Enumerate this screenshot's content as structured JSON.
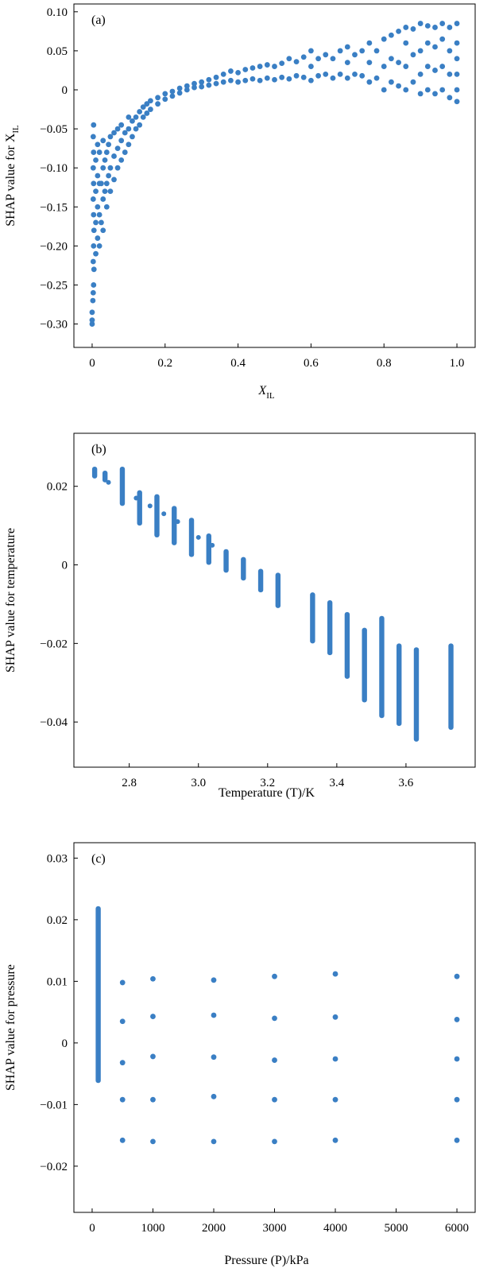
{
  "chart_data": [
    {
      "type": "scatter",
      "panel_label": "(a)",
      "xlabel": "X",
      "xlabel_sub": "IL",
      "ylabel": "SHAP value for X",
      "ylabel_sub": "IL",
      "xlim": [
        -0.05,
        1.05
      ],
      "ylim": [
        -0.33,
        0.11
      ],
      "xticks": [
        0,
        0.2,
        0.4,
        0.6,
        0.8,
        1.0
      ],
      "xtick_labels": [
        "0",
        "0.2",
        "0.4",
        "0.6",
        "0.8",
        "1.0"
      ],
      "yticks": [
        -0.3,
        -0.25,
        -0.2,
        -0.15,
        -0.1,
        -0.05,
        0,
        0.05,
        0.1
      ],
      "ytick_labels": [
        "−0.30",
        "−0.25",
        "−0.20",
        "−0.15",
        "−0.10",
        "−0.05",
        "0",
        "0.05",
        "0.10"
      ],
      "color": "#3a7fc4",
      "points": [
        [
          0,
          -0.3
        ],
        [
          0,
          -0.295
        ],
        [
          0,
          -0.285
        ],
        [
          0.002,
          -0.27
        ],
        [
          0.003,
          -0.26
        ],
        [
          0.004,
          -0.25
        ],
        [
          0.005,
          -0.23
        ],
        [
          0.003,
          -0.22
        ],
        [
          0.004,
          -0.2
        ],
        [
          0.005,
          -0.18
        ],
        [
          0.004,
          -0.16
        ],
        [
          0.003,
          -0.14
        ],
        [
          0.004,
          -0.12
        ],
        [
          0.003,
          -0.1
        ],
        [
          0.004,
          -0.08
        ],
        [
          0.003,
          -0.06
        ],
        [
          0.004,
          -0.045
        ],
        [
          0.01,
          -0.21
        ],
        [
          0.01,
          -0.17
        ],
        [
          0.01,
          -0.13
        ],
        [
          0.01,
          -0.09
        ],
        [
          0.015,
          -0.19
        ],
        [
          0.015,
          -0.15
        ],
        [
          0.015,
          -0.11
        ],
        [
          0.015,
          -0.07
        ],
        [
          0.02,
          -0.2
        ],
        [
          0.02,
          -0.16
        ],
        [
          0.02,
          -0.12
        ],
        [
          0.02,
          -0.08
        ],
        [
          0.025,
          -0.17
        ],
        [
          0.025,
          -0.12
        ],
        [
          0.03,
          -0.18
        ],
        [
          0.03,
          -0.14
        ],
        [
          0.03,
          -0.1
        ],
        [
          0.03,
          -0.065
        ],
        [
          0.035,
          -0.13
        ],
        [
          0.035,
          -0.09
        ],
        [
          0.04,
          -0.15
        ],
        [
          0.04,
          -0.12
        ],
        [
          0.04,
          -0.08
        ],
        [
          0.045,
          -0.11
        ],
        [
          0.045,
          -0.07
        ],
        [
          0.05,
          -0.13
        ],
        [
          0.05,
          -0.1
        ],
        [
          0.05,
          -0.06
        ],
        [
          0.06,
          -0.115
        ],
        [
          0.06,
          -0.085
        ],
        [
          0.06,
          -0.055
        ],
        [
          0.07,
          -0.1
        ],
        [
          0.07,
          -0.075
        ],
        [
          0.07,
          -0.05
        ],
        [
          0.08,
          -0.09
        ],
        [
          0.08,
          -0.065
        ],
        [
          0.08,
          -0.045
        ],
        [
          0.09,
          -0.08
        ],
        [
          0.09,
          -0.055
        ],
        [
          0.1,
          -0.07
        ],
        [
          0.1,
          -0.05
        ],
        [
          0.1,
          -0.035
        ],
        [
          0.11,
          -0.06
        ],
        [
          0.11,
          -0.04
        ],
        [
          0.12,
          -0.05
        ],
        [
          0.12,
          -0.035
        ],
        [
          0.13,
          -0.045
        ],
        [
          0.13,
          -0.028
        ],
        [
          0.14,
          -0.035
        ],
        [
          0.14,
          -0.022
        ],
        [
          0.15,
          -0.03
        ],
        [
          0.15,
          -0.018
        ],
        [
          0.16,
          -0.025
        ],
        [
          0.16,
          -0.014
        ],
        [
          0.18,
          -0.018
        ],
        [
          0.18,
          -0.01
        ],
        [
          0.2,
          -0.012
        ],
        [
          0.2,
          -0.005
        ],
        [
          0.22,
          -0.008
        ],
        [
          0.22,
          -0.002
        ],
        [
          0.24,
          -0.004
        ],
        [
          0.24,
          0.002
        ],
        [
          0.26,
          0.0
        ],
        [
          0.26,
          0.005
        ],
        [
          0.28,
          0.003
        ],
        [
          0.28,
          0.008
        ],
        [
          0.3,
          0.004
        ],
        [
          0.3,
          0.01
        ],
        [
          0.32,
          0.006
        ],
        [
          0.32,
          0.013
        ],
        [
          0.34,
          0.008
        ],
        [
          0.34,
          0.016
        ],
        [
          0.36,
          0.01
        ],
        [
          0.36,
          0.02
        ],
        [
          0.38,
          0.012
        ],
        [
          0.38,
          0.024
        ],
        [
          0.4,
          0.01
        ],
        [
          0.4,
          0.022
        ],
        [
          0.42,
          0.012
        ],
        [
          0.42,
          0.026
        ],
        [
          0.44,
          0.014
        ],
        [
          0.44,
          0.028
        ],
        [
          0.46,
          0.012
        ],
        [
          0.46,
          0.03
        ],
        [
          0.48,
          0.015
        ],
        [
          0.48,
          0.032
        ],
        [
          0.5,
          0.013
        ],
        [
          0.5,
          0.03
        ],
        [
          0.52,
          0.016
        ],
        [
          0.52,
          0.034
        ],
        [
          0.54,
          0.014
        ],
        [
          0.54,
          0.04
        ],
        [
          0.56,
          0.018
        ],
        [
          0.56,
          0.036
        ],
        [
          0.58,
          0.016
        ],
        [
          0.58,
          0.042
        ],
        [
          0.6,
          0.012
        ],
        [
          0.6,
          0.03
        ],
        [
          0.6,
          0.05
        ],
        [
          0.62,
          0.018
        ],
        [
          0.62,
          0.04
        ],
        [
          0.64,
          0.02
        ],
        [
          0.64,
          0.045
        ],
        [
          0.66,
          0.015
        ],
        [
          0.66,
          0.04
        ],
        [
          0.68,
          0.02
        ],
        [
          0.68,
          0.05
        ],
        [
          0.7,
          0.015
        ],
        [
          0.7,
          0.035
        ],
        [
          0.7,
          0.055
        ],
        [
          0.72,
          0.02
        ],
        [
          0.72,
          0.045
        ],
        [
          0.74,
          0.018
        ],
        [
          0.74,
          0.05
        ],
        [
          0.76,
          0.01
        ],
        [
          0.76,
          0.035
        ],
        [
          0.76,
          0.06
        ],
        [
          0.78,
          0.015
        ],
        [
          0.78,
          0.05
        ],
        [
          0.8,
          0.0
        ],
        [
          0.8,
          0.03
        ],
        [
          0.8,
          0.065
        ],
        [
          0.82,
          0.01
        ],
        [
          0.82,
          0.04
        ],
        [
          0.82,
          0.07
        ],
        [
          0.84,
          0.005
        ],
        [
          0.84,
          0.035
        ],
        [
          0.84,
          0.075
        ],
        [
          0.86,
          0.0
        ],
        [
          0.86,
          0.03
        ],
        [
          0.86,
          0.06
        ],
        [
          0.86,
          0.08
        ],
        [
          0.88,
          0.01
        ],
        [
          0.88,
          0.045
        ],
        [
          0.88,
          0.078
        ],
        [
          0.9,
          -0.005
        ],
        [
          0.9,
          0.02
        ],
        [
          0.9,
          0.05
        ],
        [
          0.9,
          0.085
        ],
        [
          0.92,
          0.0
        ],
        [
          0.92,
          0.03
        ],
        [
          0.92,
          0.06
        ],
        [
          0.92,
          0.082
        ],
        [
          0.94,
          -0.005
        ],
        [
          0.94,
          0.025
        ],
        [
          0.94,
          0.055
        ],
        [
          0.94,
          0.08
        ],
        [
          0.96,
          0.0
        ],
        [
          0.96,
          0.03
        ],
        [
          0.96,
          0.065
        ],
        [
          0.96,
          0.085
        ],
        [
          0.98,
          -0.01
        ],
        [
          0.98,
          0.02
        ],
        [
          0.98,
          0.05
        ],
        [
          0.98,
          0.08
        ],
        [
          1.0,
          -0.015
        ],
        [
          1.0,
          0.0
        ],
        [
          1.0,
          0.02
        ],
        [
          1.0,
          0.04
        ],
        [
          1.0,
          0.06
        ],
        [
          1.0,
          0.085
        ]
      ]
    },
    {
      "type": "scatter",
      "panel_label": "(b)",
      "xlabel": "Temperature (T)/K",
      "ylabel": "SHAP value for temperature",
      "xlim": [
        2.64,
        3.8
      ],
      "ylim": [
        -0.0515,
        0.0335
      ],
      "xticks": [
        2.8,
        3.0,
        3.2,
        3.4,
        3.6
      ],
      "xtick_labels": [
        "2.8",
        "3.0",
        "3.2",
        "3.4",
        "3.6"
      ],
      "yticks": [
        -0.04,
        -0.02,
        0,
        0.02
      ],
      "ytick_labels": [
        "−0.04",
        "−0.02",
        "0",
        "0.02"
      ],
      "color": "#3a7fc4",
      "columns": [
        {
          "x": 2.7,
          "ymin": 0.022,
          "ymax": 0.025
        },
        {
          "x": 2.73,
          "ymin": 0.021,
          "ymax": 0.024
        },
        {
          "x": 2.78,
          "ymin": 0.015,
          "ymax": 0.025
        },
        {
          "x": 2.83,
          "ymin": 0.01,
          "ymax": 0.019
        },
        {
          "x": 2.88,
          "ymin": 0.007,
          "ymax": 0.018
        },
        {
          "x": 2.93,
          "ymin": 0.005,
          "ymax": 0.015
        },
        {
          "x": 2.98,
          "ymin": 0.002,
          "ymax": 0.012
        },
        {
          "x": 3.03,
          "ymin": 0.0,
          "ymax": 0.008
        },
        {
          "x": 3.08,
          "ymin": -0.002,
          "ymax": 0.004
        },
        {
          "x": 3.13,
          "ymin": -0.004,
          "ymax": 0.002
        },
        {
          "x": 3.18,
          "ymin": -0.007,
          "ymax": -0.001
        },
        {
          "x": 3.23,
          "ymin": -0.011,
          "ymax": -0.002
        },
        {
          "x": 3.33,
          "ymin": -0.02,
          "ymax": -0.007
        },
        {
          "x": 3.38,
          "ymin": -0.023,
          "ymax": -0.009
        },
        {
          "x": 3.43,
          "ymin": -0.029,
          "ymax": -0.012
        },
        {
          "x": 3.48,
          "ymin": -0.035,
          "ymax": -0.016
        },
        {
          "x": 3.53,
          "ymin": -0.039,
          "ymax": -0.013
        },
        {
          "x": 3.58,
          "ymin": -0.041,
          "ymax": -0.02
        },
        {
          "x": 3.63,
          "ymin": -0.045,
          "ymax": -0.021
        },
        {
          "x": 3.73,
          "ymin": -0.042,
          "ymax": -0.02
        }
      ],
      "diagonal_points": [
        [
          2.7,
          0.023
        ],
        [
          2.74,
          0.021
        ],
        [
          2.78,
          0.019
        ],
        [
          2.82,
          0.017
        ],
        [
          2.86,
          0.015
        ],
        [
          2.9,
          0.013
        ],
        [
          2.94,
          0.011
        ],
        [
          2.98,
          0.009
        ],
        [
          3.0,
          0.007
        ],
        [
          3.04,
          0.005
        ]
      ]
    },
    {
      "type": "scatter",
      "panel_label": "(c)",
      "xlabel": "Pressure (P)/kPa",
      "ylabel": "SHAP value for pressure",
      "xlim": [
        -300,
        6300
      ],
      "ylim": [
        -0.0275,
        0.0325
      ],
      "xticks": [
        0,
        1000,
        2000,
        3000,
        4000,
        5000,
        6000
      ],
      "xtick_labels": [
        "0",
        "1000",
        "2000",
        "3000",
        "4000",
        "5000",
        "6000"
      ],
      "yticks": [
        -0.02,
        -0.01,
        0,
        0.01,
        0.02,
        0.03
      ],
      "ytick_labels": [
        "−0.02",
        "−0.01",
        "0",
        "0.01",
        "0.02",
        "0.03"
      ],
      "color": "#3a7fc4",
      "columns": [
        {
          "x": 100,
          "ymin": -0.0065,
          "ymax": 0.0222
        }
      ],
      "points": [
        [
          500,
          0.0098
        ],
        [
          500,
          0.0035
        ],
        [
          500,
          -0.0032
        ],
        [
          500,
          -0.0092
        ],
        [
          500,
          -0.0158
        ],
        [
          1000,
          0.0104
        ],
        [
          1000,
          0.0043
        ],
        [
          1000,
          -0.0022
        ],
        [
          1000,
          -0.0092
        ],
        [
          1000,
          -0.016
        ],
        [
          2000,
          0.0102
        ],
        [
          2000,
          0.0045
        ],
        [
          2000,
          -0.0023
        ],
        [
          2000,
          -0.0087
        ],
        [
          2000,
          -0.016
        ],
        [
          3000,
          0.0108
        ],
        [
          3000,
          0.004
        ],
        [
          3000,
          -0.0028
        ],
        [
          3000,
          -0.0092
        ],
        [
          3000,
          -0.016
        ],
        [
          4000,
          0.0112
        ],
        [
          4000,
          0.0042
        ],
        [
          4000,
          -0.0026
        ],
        [
          4000,
          -0.0092
        ],
        [
          4000,
          -0.0158
        ],
        [
          6000,
          0.0108
        ],
        [
          6000,
          0.0038
        ],
        [
          6000,
          -0.0026
        ],
        [
          6000,
          -0.0092
        ],
        [
          6000,
          -0.0158
        ]
      ]
    }
  ]
}
